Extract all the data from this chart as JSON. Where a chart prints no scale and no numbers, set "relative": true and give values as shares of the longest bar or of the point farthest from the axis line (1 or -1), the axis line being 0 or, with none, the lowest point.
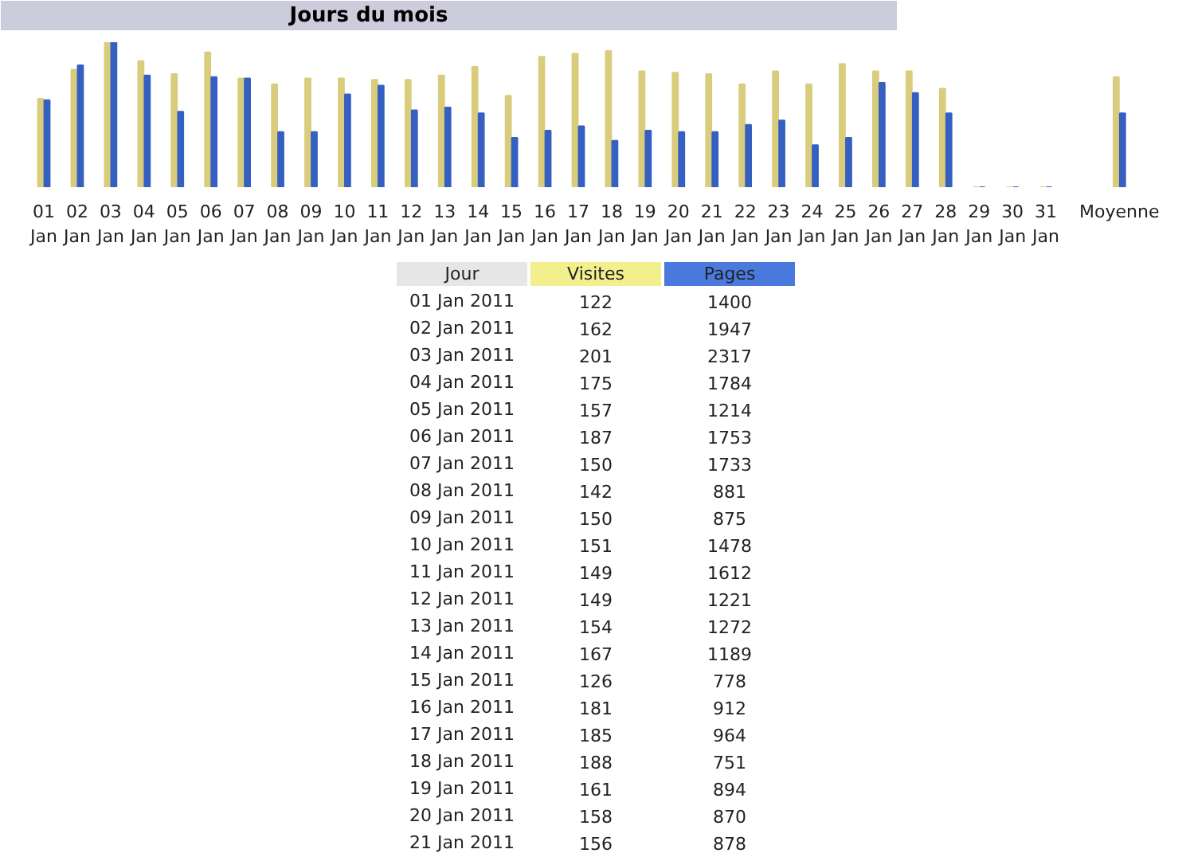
{
  "chart_data": [
    {
      "type": "bar",
      "title": "Jours du mois",
      "relative": true,
      "categories": [
        "01\nJan",
        "02\nJan",
        "03\nJan",
        "04\nJan",
        "05\nJan",
        "06\nJan",
        "07\nJan",
        "08\nJan",
        "09\nJan",
        "10\nJan",
        "11\nJan",
        "12\nJan",
        "13\nJan",
        "14\nJan",
        "15\nJan",
        "16\nJan",
        "17\nJan",
        "18\nJan",
        "19\nJan",
        "20\nJan",
        "21\nJan",
        "22\nJan",
        "23\nJan",
        "24\nJan",
        "25\nJan",
        "26\nJan",
        "27\nJan",
        "28\nJan",
        "29\nJan",
        "30\nJan",
        "31\nJan",
        "Moyenne"
      ],
      "series": [
        {
          "color": "#d9cc7c",
          "values": [
            0.61,
            0.81,
            1,
            0.87,
            0.78,
            0.93,
            0.75,
            0.71,
            0.75,
            0.75,
            0.74,
            0.74,
            0.77,
            0.83,
            0.63,
            0.9,
            0.92,
            0.94,
            0.8,
            0.79,
            0.78,
            0.71,
            0.8,
            0.71,
            0.85,
            0.8,
            0.8,
            0.68,
            0,
            0,
            0,
            0.76
          ]
        },
        {
          "color": "#3560c2",
          "values": [
            0.6,
            0.84,
            1,
            0.77,
            0.52,
            0.76,
            0.75,
            0.38,
            0.38,
            0.64,
            0.7,
            0.53,
            0.55,
            0.51,
            0.34,
            0.39,
            0.42,
            0.32,
            0.39,
            0.38,
            0.38,
            0.43,
            0.46,
            0.29,
            0.34,
            0.72,
            0.65,
            0.51,
            0,
            0,
            0,
            0.51
          ]
        }
      ]
    },
    {
      "type": "other",
      "ylabel": "Jour",
      "data_labels": true,
      "categories": [
        "01 Jan 2011",
        "02 Jan 2011",
        "03 Jan 2011",
        "04 Jan 2011",
        "05 Jan 2011",
        "06 Jan 2011",
        "07 Jan 2011",
        "08 Jan 2011",
        "09 Jan 2011",
        "10 Jan 2011",
        "11 Jan 2011",
        "12 Jan 2011",
        "13 Jan 2011",
        "14 Jan 2011",
        "15 Jan 2011",
        "16 Jan 2011",
        "17 Jan 2011",
        "18 Jan 2011",
        "19 Jan 2011",
        "20 Jan 2011",
        "21 Jan 2011"
      ],
      "series": [
        {
          "name": "Visites",
          "values": [
            122,
            162,
            201,
            175,
            157,
            187,
            150,
            142,
            150,
            151,
            149,
            149,
            154,
            167,
            126,
            181,
            185,
            188,
            161,
            158,
            156
          ]
        },
        {
          "name": "Pages",
          "values": [
            1400,
            1947,
            2317,
            1784,
            1214,
            1753,
            1733,
            881,
            875,
            1478,
            1612,
            1221,
            1272,
            1189,
            778,
            912,
            964,
            751,
            894,
            870,
            878
          ]
        }
      ]
    }
  ]
}
